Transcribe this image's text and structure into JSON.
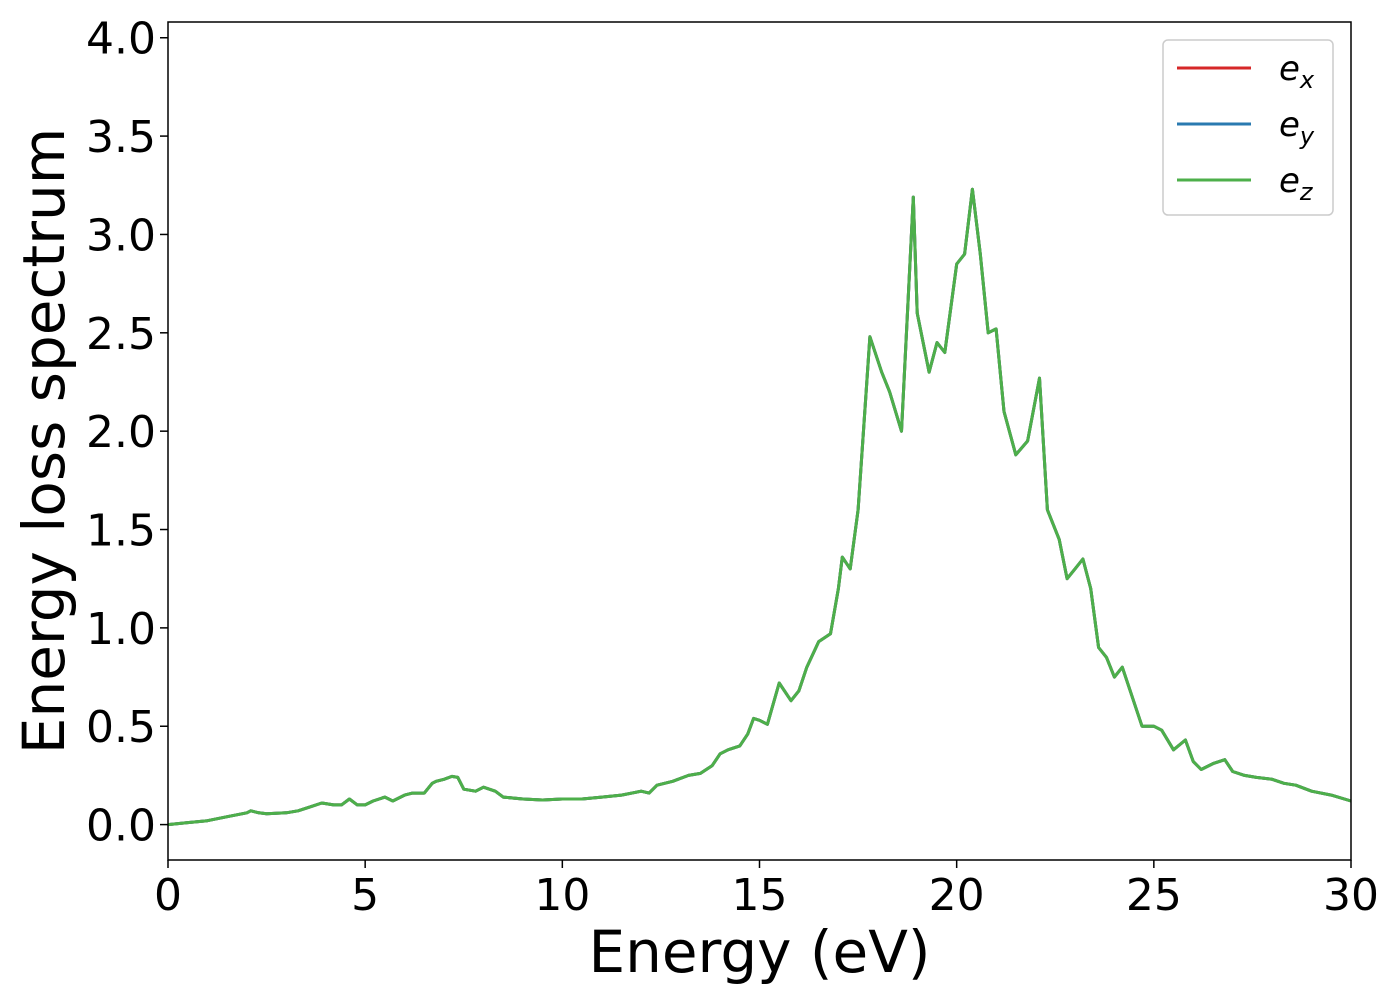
{
  "chart_data": {
    "type": "line",
    "xlabel": "Energy (eV)",
    "ylabel": "Energy loss spectrum",
    "xlim": [
      0,
      30
    ],
    "ylim": [
      -0.18,
      4.08
    ],
    "x_ticks": [
      {
        "value": 0,
        "label": "0"
      },
      {
        "value": 5,
        "label": "5"
      },
      {
        "value": 10,
        "label": "10"
      },
      {
        "value": 15,
        "label": "15"
      },
      {
        "value": 20,
        "label": "20"
      },
      {
        "value": 25,
        "label": "25"
      },
      {
        "value": 30,
        "label": "30"
      }
    ],
    "y_ticks": [
      {
        "value": 0.0,
        "label": "0.0"
      },
      {
        "value": 0.5,
        "label": "0.5"
      },
      {
        "value": 1.0,
        "label": "1.0"
      },
      {
        "value": 1.5,
        "label": "1.5"
      },
      {
        "value": 2.0,
        "label": "2.0"
      },
      {
        "value": 2.5,
        "label": "2.5"
      },
      {
        "value": 3.0,
        "label": "3.0"
      },
      {
        "value": 3.5,
        "label": "3.5"
      },
      {
        "value": 4.0,
        "label": "4.0"
      }
    ],
    "grid": false,
    "legend_position": "top-right",
    "series": [
      {
        "name": "ex",
        "base": "e",
        "sub": "x",
        "color": "#d62728",
        "x": [
          0,
          0.5,
          1.0,
          1.5,
          2.0,
          2.1,
          2.3,
          2.5,
          3.0,
          3.3,
          3.6,
          3.9,
          4.2,
          4.4,
          4.6,
          4.8,
          5.0,
          5.2,
          5.5,
          5.7,
          6.0,
          6.2,
          6.5,
          6.7,
          6.8,
          7.0,
          7.2,
          7.35,
          7.5,
          7.8,
          8.0,
          8.3,
          8.5,
          9.0,
          9.5,
          10.0,
          10.5,
          11.0,
          11.5,
          12.0,
          12.2,
          12.4,
          12.8,
          13.2,
          13.5,
          13.8,
          14.0,
          14.2,
          14.5,
          14.7,
          14.85,
          15.0,
          15.2,
          15.5,
          15.8,
          16.0,
          16.2,
          16.5,
          16.8,
          17.0,
          17.1,
          17.3,
          17.5,
          17.8,
          18.1,
          18.3,
          18.6,
          18.9,
          19.0,
          19.3,
          19.5,
          19.7,
          20.0,
          20.2,
          20.4,
          20.6,
          20.8,
          21.0,
          21.2,
          21.5,
          21.8,
          22.1,
          22.3,
          22.6,
          22.8,
          23.0,
          23.2,
          23.4,
          23.6,
          23.8,
          24.0,
          24.2,
          24.4,
          24.7,
          25.0,
          25.2,
          25.5,
          25.8,
          26.0,
          26.2,
          26.5,
          26.8,
          27.0,
          27.3,
          27.6,
          28.0,
          28.3,
          28.6,
          29.0,
          29.5,
          30.0
        ],
        "y": [
          0.0,
          0.01,
          0.02,
          0.04,
          0.06,
          0.07,
          0.06,
          0.055,
          0.06,
          0.07,
          0.09,
          0.11,
          0.1,
          0.1,
          0.13,
          0.1,
          0.1,
          0.12,
          0.14,
          0.12,
          0.15,
          0.16,
          0.16,
          0.21,
          0.22,
          0.23,
          0.245,
          0.24,
          0.18,
          0.17,
          0.19,
          0.17,
          0.14,
          0.13,
          0.125,
          0.13,
          0.13,
          0.14,
          0.15,
          0.17,
          0.16,
          0.2,
          0.22,
          0.25,
          0.26,
          0.3,
          0.36,
          0.38,
          0.4,
          0.46,
          0.54,
          0.53,
          0.51,
          0.72,
          0.63,
          0.68,
          0.8,
          0.93,
          0.97,
          1.2,
          1.36,
          1.3,
          1.6,
          2.48,
          2.3,
          2.2,
          2.0,
          3.19,
          2.6,
          2.3,
          2.45,
          2.4,
          2.85,
          2.9,
          3.23,
          2.9,
          2.5,
          2.52,
          2.1,
          1.88,
          1.95,
          2.27,
          1.6,
          1.45,
          1.25,
          1.3,
          1.35,
          1.2,
          0.9,
          0.85,
          0.75,
          0.8,
          0.68,
          0.5,
          0.5,
          0.48,
          0.38,
          0.43,
          0.32,
          0.28,
          0.31,
          0.33,
          0.27,
          0.25,
          0.24,
          0.23,
          0.21,
          0.2,
          0.17,
          0.15,
          0.12
        ]
      },
      {
        "name": "ey",
        "base": "e",
        "sub": "y",
        "color": "#2a7ab0",
        "x": [
          0,
          0.5,
          1.0,
          1.5,
          2.0,
          2.1,
          2.3,
          2.5,
          3.0,
          3.3,
          3.6,
          3.9,
          4.2,
          4.4,
          4.6,
          4.8,
          5.0,
          5.2,
          5.5,
          5.7,
          6.0,
          6.2,
          6.5,
          6.7,
          6.8,
          7.0,
          7.2,
          7.35,
          7.5,
          7.8,
          8.0,
          8.3,
          8.5,
          9.0,
          9.5,
          10.0,
          10.5,
          11.0,
          11.5,
          12.0,
          12.2,
          12.4,
          12.8,
          13.2,
          13.5,
          13.8,
          14.0,
          14.2,
          14.5,
          14.7,
          14.85,
          15.0,
          15.2,
          15.5,
          15.8,
          16.0,
          16.2,
          16.5,
          16.8,
          17.0,
          17.1,
          17.3,
          17.5,
          17.8,
          18.1,
          18.3,
          18.6,
          18.9,
          19.0,
          19.3,
          19.5,
          19.7,
          20.0,
          20.2,
          20.4,
          20.6,
          20.8,
          21.0,
          21.2,
          21.5,
          21.8,
          22.1,
          22.3,
          22.6,
          22.8,
          23.0,
          23.2,
          23.4,
          23.6,
          23.8,
          24.0,
          24.2,
          24.4,
          24.7,
          25.0,
          25.2,
          25.5,
          25.8,
          26.0,
          26.2,
          26.5,
          26.8,
          27.0,
          27.3,
          27.6,
          28.0,
          28.3,
          28.6,
          29.0,
          29.5,
          30.0
        ],
        "y": [
          0.0,
          0.01,
          0.02,
          0.04,
          0.06,
          0.07,
          0.06,
          0.055,
          0.06,
          0.07,
          0.09,
          0.11,
          0.1,
          0.1,
          0.13,
          0.1,
          0.1,
          0.12,
          0.14,
          0.12,
          0.15,
          0.16,
          0.16,
          0.21,
          0.22,
          0.23,
          0.245,
          0.24,
          0.18,
          0.17,
          0.19,
          0.17,
          0.14,
          0.13,
          0.125,
          0.13,
          0.13,
          0.14,
          0.15,
          0.17,
          0.16,
          0.2,
          0.22,
          0.25,
          0.26,
          0.3,
          0.36,
          0.38,
          0.4,
          0.46,
          0.54,
          0.53,
          0.51,
          0.72,
          0.63,
          0.68,
          0.8,
          0.93,
          0.97,
          1.2,
          1.36,
          1.3,
          1.6,
          2.48,
          2.3,
          2.2,
          2.0,
          3.19,
          2.6,
          2.3,
          2.45,
          2.4,
          2.85,
          2.9,
          3.23,
          2.9,
          2.5,
          2.52,
          2.1,
          1.88,
          1.95,
          2.27,
          1.6,
          1.45,
          1.25,
          1.3,
          1.35,
          1.2,
          0.9,
          0.85,
          0.75,
          0.8,
          0.68,
          0.5,
          0.5,
          0.48,
          0.38,
          0.43,
          0.32,
          0.28,
          0.31,
          0.33,
          0.27,
          0.25,
          0.24,
          0.23,
          0.21,
          0.2,
          0.17,
          0.15,
          0.12
        ]
      },
      {
        "name": "ez",
        "base": "e",
        "sub": "z",
        "color": "#4daf4a",
        "x": [
          0,
          0.5,
          1.0,
          1.5,
          2.0,
          2.1,
          2.3,
          2.5,
          3.0,
          3.3,
          3.6,
          3.9,
          4.2,
          4.4,
          4.6,
          4.8,
          5.0,
          5.2,
          5.5,
          5.7,
          6.0,
          6.2,
          6.5,
          6.7,
          6.8,
          7.0,
          7.2,
          7.35,
          7.5,
          7.8,
          8.0,
          8.3,
          8.5,
          9.0,
          9.5,
          10.0,
          10.5,
          11.0,
          11.5,
          12.0,
          12.2,
          12.4,
          12.8,
          13.2,
          13.5,
          13.8,
          14.0,
          14.2,
          14.5,
          14.7,
          14.85,
          15.0,
          15.2,
          15.5,
          15.8,
          16.0,
          16.2,
          16.5,
          16.8,
          17.0,
          17.1,
          17.3,
          17.5,
          17.8,
          18.1,
          18.3,
          18.6,
          18.9,
          19.0,
          19.3,
          19.5,
          19.7,
          20.0,
          20.2,
          20.4,
          20.6,
          20.8,
          21.0,
          21.2,
          21.5,
          21.8,
          22.1,
          22.3,
          22.6,
          22.8,
          23.0,
          23.2,
          23.4,
          23.6,
          23.8,
          24.0,
          24.2,
          24.4,
          24.7,
          25.0,
          25.2,
          25.5,
          25.8,
          26.0,
          26.2,
          26.5,
          26.8,
          27.0,
          27.3,
          27.6,
          28.0,
          28.3,
          28.6,
          29.0,
          29.5,
          30.0
        ],
        "y": [
          0.0,
          0.01,
          0.02,
          0.04,
          0.06,
          0.07,
          0.06,
          0.055,
          0.06,
          0.07,
          0.09,
          0.11,
          0.1,
          0.1,
          0.13,
          0.1,
          0.1,
          0.12,
          0.14,
          0.12,
          0.15,
          0.16,
          0.16,
          0.21,
          0.22,
          0.23,
          0.245,
          0.24,
          0.18,
          0.17,
          0.19,
          0.17,
          0.14,
          0.13,
          0.125,
          0.13,
          0.13,
          0.14,
          0.15,
          0.17,
          0.16,
          0.2,
          0.22,
          0.25,
          0.26,
          0.3,
          0.36,
          0.38,
          0.4,
          0.46,
          0.54,
          0.53,
          0.51,
          0.72,
          0.63,
          0.68,
          0.8,
          0.93,
          0.97,
          1.2,
          1.36,
          1.3,
          1.6,
          2.48,
          2.3,
          2.2,
          2.0,
          3.19,
          2.6,
          2.3,
          2.45,
          2.4,
          2.85,
          2.9,
          3.23,
          2.9,
          2.5,
          2.52,
          2.1,
          1.88,
          1.95,
          2.27,
          1.6,
          1.45,
          1.25,
          1.3,
          1.35,
          1.2,
          0.9,
          0.85,
          0.75,
          0.8,
          0.68,
          0.5,
          0.5,
          0.48,
          0.38,
          0.43,
          0.32,
          0.28,
          0.31,
          0.33,
          0.27,
          0.25,
          0.24,
          0.23,
          0.21,
          0.2,
          0.17,
          0.15,
          0.12
        ]
      }
    ]
  }
}
